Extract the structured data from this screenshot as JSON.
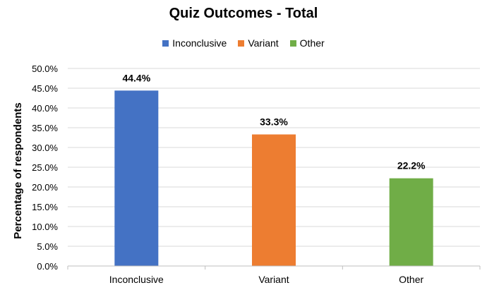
{
  "chart_data": {
    "type": "bar",
    "title": "Quiz Outcomes - Total",
    "ylabel": "Percentage of respondents",
    "xlabel": "",
    "categories": [
      "Inconclusive",
      "Variant",
      "Other"
    ],
    "values": [
      44.4,
      33.3,
      22.2
    ],
    "data_labels": [
      "44.4%",
      "33.3%",
      "22.2%"
    ],
    "colors": [
      "#4472C4",
      "#ED7D31",
      "#70AD47"
    ],
    "ylim": [
      0,
      50
    ],
    "y_ticks": [
      0,
      5,
      10,
      15,
      20,
      25,
      30,
      35,
      40,
      45,
      50
    ],
    "y_tick_labels": [
      "0.0%",
      "5.0%",
      "10.0%",
      "15.0%",
      "20.0%",
      "25.0%",
      "30.0%",
      "35.0%",
      "40.0%",
      "45.0%",
      "50.0%"
    ],
    "grid": true,
    "gridline_color": "#D9D9D9",
    "legend": {
      "placement": "top",
      "entries": [
        "Inconclusive",
        "Variant",
        "Other"
      ]
    }
  }
}
